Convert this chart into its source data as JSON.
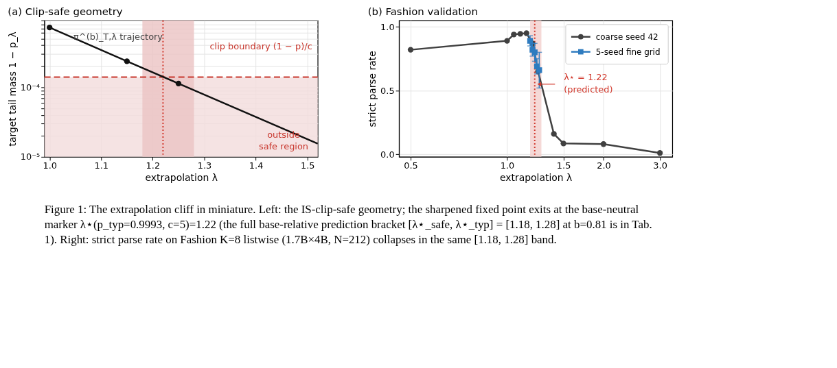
{
  "chart_data": [
    {
      "type": "line",
      "title": "(a) Clip-safe geometry",
      "xlabel": "extrapolation λ",
      "ylabel": "target tail mass 1 − p_λ",
      "log": "y",
      "grid": true,
      "legend": false,
      "xlim": [
        0.99,
        1.52
      ],
      "xticks": [
        {
          "value": 1,
          "label": "1.0"
        },
        {
          "value": 1.1,
          "label": "1.1"
        },
        {
          "value": 1.2,
          "label": "1.2"
        },
        {
          "value": 1.3,
          "label": "1.3"
        },
        {
          "value": 1.4,
          "label": "1.4"
        },
        {
          "value": 1.5,
          "label": "1.5"
        }
      ],
      "ylim": [
        1e-05,
        0.00091
      ],
      "yticks": [
        {
          "value": 1e-05,
          "label": "10⁻⁵"
        },
        {
          "value": 2e-05,
          "label": null
        },
        {
          "value": 3e-05,
          "label": null
        },
        {
          "value": 4e-05,
          "label": null
        },
        {
          "value": 5e-05,
          "label": null
        },
        {
          "value": 6e-05,
          "label": null
        },
        {
          "value": 7e-05,
          "label": null
        },
        {
          "value": 8e-05,
          "label": null
        },
        {
          "value": 9e-05,
          "label": null
        },
        {
          "value": 0.0001,
          "label": "10⁻⁴"
        },
        {
          "value": 0.0002,
          "label": null
        },
        {
          "value": 0.0003,
          "label": null
        },
        {
          "value": 0.0004,
          "label": null
        },
        {
          "value": 0.0005,
          "label": null
        },
        {
          "value": 0.0006,
          "label": null
        },
        {
          "value": 0.0007,
          "label": null
        },
        {
          "value": 0.0008,
          "label": null
        },
        {
          "value": 0.0009,
          "label": null
        }
      ],
      "series": [
        {
          "name": "π^(b)_T,λ trajectory",
          "marker": "none",
          "color": "#111111",
          "x": [
            1.0,
            1.15,
            1.25,
            1.52
          ],
          "values": [
            0.00072,
            0.000236,
            0.000113,
            1.55e-05
          ]
        },
        {
          "type": "scatter",
          "marker": "circle",
          "color": "#111111",
          "x": [
            1.0,
            1.15,
            1.25
          ],
          "values": [
            0.00072,
            0.000236,
            0.000113
          ]
        }
      ],
      "bands": [
        {
          "axis": "y",
          "from": 1e-05,
          "to": 0.00014,
          "color": "#f3dcdc"
        },
        {
          "axis": "x",
          "from": 1.18,
          "to": 1.28,
          "color": "#ebc3c3"
        }
      ],
      "ref_lines": [
        {
          "axis": "y",
          "value": 0.00014,
          "label": "clip boundary (1 − p)/c",
          "color": "#c8372d",
          "line_style": "dashed"
        },
        {
          "axis": "x",
          "value": 1.22,
          "color": "#d23a2e",
          "line_style": "dotted"
        }
      ],
      "annotations": [
        "outside\nsafe region"
      ]
    },
    {
      "type": "line",
      "title": "(b) Fashion validation",
      "xlabel": "extrapolation λ",
      "ylabel": "strict parse rate",
      "log": "x",
      "grid": true,
      "legend": "top right",
      "xlim": [
        0.46,
        3.28
      ],
      "xticks": [
        {
          "value": 0.5,
          "label": "0.5"
        },
        {
          "value": 1,
          "label": "1.0"
        },
        {
          "value": 1.5,
          "label": "1.5"
        },
        {
          "value": 2,
          "label": "2.0"
        },
        {
          "value": 3,
          "label": "3.0"
        }
      ],
      "ylim": [
        -0.02,
        1.05
      ],
      "yticks": [
        {
          "value": 0,
          "label": "0.0"
        },
        0.5,
        {
          "value": 1,
          "label": "1.0"
        }
      ],
      "series": [
        {
          "name": "coarse seed 42",
          "marker": "circle",
          "color": "#404040",
          "x": [
            0.5,
            1.0,
            1.05,
            1.1,
            1.15,
            1.2,
            1.25,
            1.4,
            1.5,
            2.0,
            3.0
          ],
          "values": [
            0.82,
            0.89,
            0.94,
            0.945,
            0.95,
            0.87,
            0.65,
            0.16,
            0.085,
            0.08,
            0.01
          ]
        },
        {
          "name": "5-seed fine grid",
          "marker": "square",
          "color": "#2e7bbf",
          "x": [
            1.18,
            1.2,
            1.22,
            1.24,
            1.26
          ],
          "values": [
            0.89,
            0.82,
            0.8,
            0.69,
            0.66
          ],
          "errors": [
            0.04,
            0.05,
            0.07,
            0.06,
            0.14
          ]
        }
      ],
      "bands": [
        {
          "axis": "x",
          "from": 1.18,
          "to": 1.28,
          "color": "#f3d0cd"
        }
      ],
      "ref_lines": [
        {
          "axis": "x",
          "value": 1.22,
          "color": "#d23a2e",
          "line_style": "dotted"
        }
      ],
      "annotations": [
        {
          "text": "λ⋆ = 1.22\n(predicted)",
          "x": 1.26,
          "y": 0.55
        },
        "Figure 1: The extrapolation cliff in miniature. Left: the IS-clip-safe geometry; the sharpened fixed point exits at the base-neutral marker λ⋆(p_typ=0.9993, c=5)=1.22 (the full base-relative prediction bracket [λ⋆_safe, λ⋆_typ] = [1.18, 1.28] at b=0.81 is in Tab. 1). Right: strict parse rate on Fashion K=8 listwise (1.7B×4B, N=212) collapses in the same [1.18, 1.28] band."
      ]
    }
  ]
}
